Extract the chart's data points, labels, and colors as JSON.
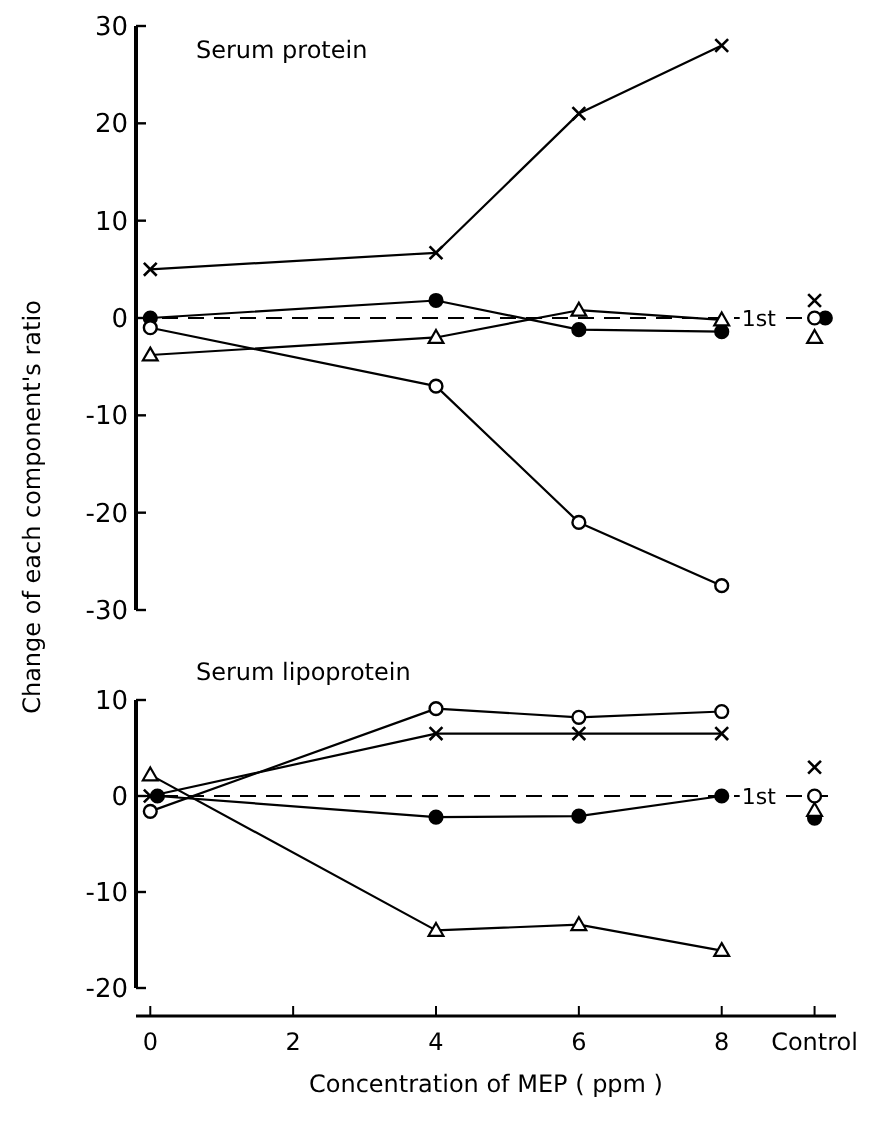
{
  "chart_data": [
    {
      "type": "line",
      "title": "Serum protein",
      "ylabel": "Change of each component's ratio",
      "xlim": [
        -0.2,
        9.6
      ],
      "ylim": [
        -30,
        30
      ],
      "yticks": [
        -30,
        -20,
        -10,
        0,
        10,
        20,
        30
      ],
      "tick_labels": "y",
      "line_style": "solid",
      "ref_lines": [
        {
          "axis": "y",
          "value": 0,
          "label": "1st",
          "line_style": "dashed",
          "color": "#000000"
        }
      ],
      "series": [
        {
          "x": [
            0,
            4,
            6,
            8
          ],
          "values": [
            5,
            6.7,
            21,
            28
          ],
          "color": "#000000",
          "marker": "cross"
        },
        {
          "x": [
            0,
            4,
            6,
            8
          ],
          "values": [
            0,
            1.8,
            -1.2,
            -1.4
          ],
          "color": "#000000",
          "marker": "circle"
        },
        {
          "x": [
            0,
            4,
            6,
            8
          ],
          "values": [
            -3.8,
            -2,
            0.8,
            -0.2
          ],
          "color": "#000000",
          "marker": "triangle"
        },
        {
          "x": [
            0,
            4,
            6,
            8
          ],
          "values": [
            -1,
            -7,
            -21,
            -27.5
          ],
          "color": "#000000",
          "marker": "circle-open"
        },
        {
          "type": "scatter",
          "x": [
            9.3
          ],
          "values": [
            1.8
          ],
          "color": "#000000",
          "marker": "cross"
        },
        {
          "type": "scatter",
          "x": [
            9.45
          ],
          "values": [
            0
          ],
          "color": "#000000",
          "marker": "circle"
        },
        {
          "type": "scatter",
          "x": [
            9.3
          ],
          "values": [
            -2
          ],
          "color": "#000000",
          "marker": "triangle"
        },
        {
          "type": "scatter",
          "x": [
            9.3
          ],
          "values": [
            0
          ],
          "color": "#000000",
          "marker": "circle-open"
        }
      ]
    },
    {
      "type": "line",
      "title": "Serum lipoprotein",
      "xlabel": "Concentration of MEP ( ppm )",
      "xlim": [
        -0.2,
        9.6
      ],
      "xticks": [
        0,
        2,
        4,
        6,
        8,
        {
          "value": 9.3,
          "label": "Control"
        }
      ],
      "ylim": [
        -20,
        10
      ],
      "yticks": [
        -20,
        -10,
        0,
        10
      ],
      "line_style": "solid",
      "ref_lines": [
        {
          "axis": "y",
          "value": 0,
          "label": "1st",
          "line_style": "dashed",
          "color": "#000000"
        }
      ],
      "series": [
        {
          "x": [
            0,
            4,
            6,
            8
          ],
          "values": [
            0,
            6.5,
            6.5,
            6.5
          ],
          "color": "#000000",
          "marker": "cross"
        },
        {
          "x": [
            0.1,
            4,
            6,
            8
          ],
          "values": [
            0,
            -2.2,
            -2.1,
            0
          ],
          "color": "#000000",
          "marker": "circle"
        },
        {
          "x": [
            0,
            4,
            6,
            8
          ],
          "values": [
            2.2,
            -14,
            -13.4,
            -16.1
          ],
          "color": "#000000",
          "marker": "triangle"
        },
        {
          "x": [
            0,
            4,
            6,
            8
          ],
          "values": [
            -1.6,
            9.1,
            8.2,
            8.8
          ],
          "color": "#000000",
          "marker": "circle-open"
        },
        {
          "type": "scatter",
          "x": [
            9.3
          ],
          "values": [
            3
          ],
          "color": "#000000",
          "marker": "cross"
        },
        {
          "type": "scatter",
          "x": [
            9.3
          ],
          "values": [
            -2.3
          ],
          "color": "#000000",
          "marker": "circle"
        },
        {
          "type": "scatter",
          "x": [
            9.3
          ],
          "values": [
            -1.5
          ],
          "color": "#000000",
          "marker": "triangle"
        },
        {
          "type": "scatter",
          "x": [
            9.3
          ],
          "values": [
            0
          ],
          "color": "#000000",
          "marker": "circle-open"
        }
      ]
    }
  ]
}
